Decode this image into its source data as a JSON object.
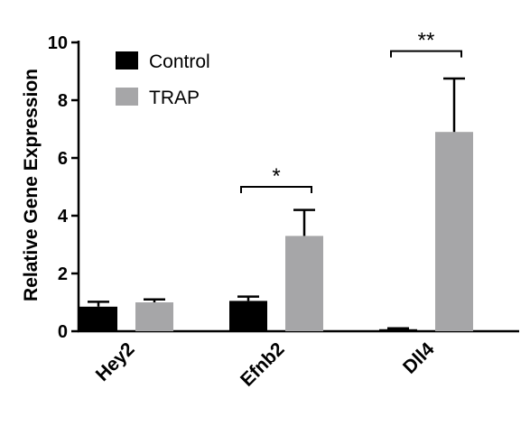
{
  "chart_data": {
    "type": "bar",
    "title": "",
    "xlabel": "",
    "ylabel": "Relative Gene Expression",
    "ylim": [
      0,
      10
    ],
    "yticks": [
      0,
      2,
      4,
      6,
      8,
      10
    ],
    "grid": false,
    "legend_position": "top-left",
    "categories": [
      "Hey2",
      "Efnb2",
      "Dll4"
    ],
    "series": [
      {
        "name": "Control",
        "color": "#000000",
        "values": [
          0.85,
          1.05,
          0.07
        ],
        "errors": [
          0.17,
          0.15,
          0.03
        ]
      },
      {
        "name": "TRAP",
        "color": "#a6a6a8",
        "values": [
          1.0,
          3.3,
          6.9
        ],
        "errors": [
          0.1,
          0.9,
          1.85
        ]
      }
    ],
    "significance": [
      {
        "category": "Hey2",
        "label": ""
      },
      {
        "category": "Efnb2",
        "label": "*",
        "at": 5.0
      },
      {
        "category": "Dll4",
        "label": "**",
        "at": 9.7
      }
    ]
  }
}
